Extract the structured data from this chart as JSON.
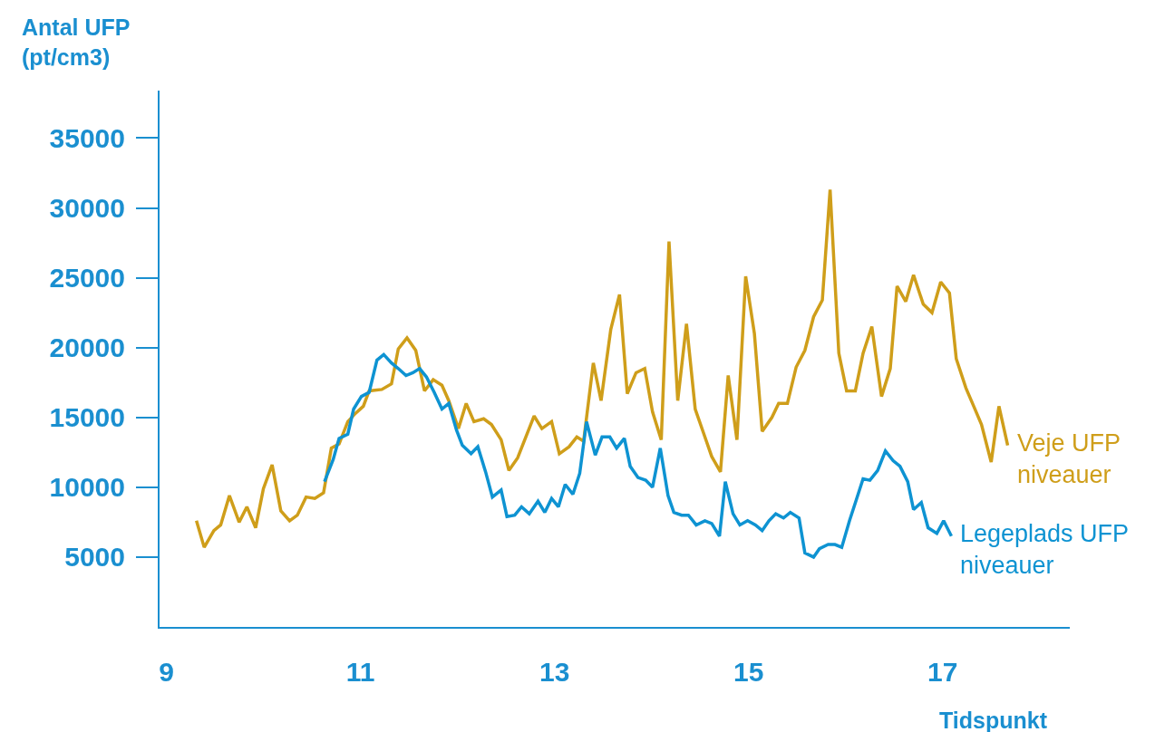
{
  "chart_data": {
    "type": "line",
    "xlabel": "Tidspunkt",
    "ylabel": "Antal UFP (pt/cm3)",
    "xlim": [
      8.93,
      18.31
    ],
    "ylim": [
      0,
      38400
    ],
    "xticks": [
      9,
      11,
      13,
      15,
      17
    ],
    "yticks": [
      5000,
      10000,
      15000,
      20000,
      25000,
      30000,
      35000
    ],
    "series": [
      {
        "name": "Veje UFP niveauer",
        "color": "#cf9e1a",
        "x": [
          9.31,
          9.39,
          9.49,
          9.56,
          9.65,
          9.75,
          9.83,
          9.92,
          10.0,
          10.09,
          10.18,
          10.27,
          10.35,
          10.44,
          10.53,
          10.62,
          10.7,
          10.78,
          10.87,
          10.95,
          11.03,
          11.09,
          11.22,
          11.32,
          11.39,
          11.48,
          11.57,
          11.66,
          11.75,
          11.84,
          11.91,
          12.01,
          12.09,
          12.17,
          12.27,
          12.35,
          12.45,
          12.53,
          12.62,
          12.71,
          12.79,
          12.87,
          12.97,
          13.05,
          13.15,
          13.23,
          13.3,
          13.4,
          13.48,
          13.58,
          13.67,
          13.75,
          13.84,
          13.93,
          14.01,
          14.1,
          14.18,
          14.27,
          14.36,
          14.45,
          14.54,
          14.62,
          14.71,
          14.79,
          14.88,
          14.97,
          15.06,
          15.14,
          15.24,
          15.31,
          15.4,
          15.49,
          15.58,
          15.67,
          15.76,
          15.84,
          15.93,
          16.01,
          16.1,
          16.18,
          16.27,
          16.37,
          16.46,
          16.53,
          16.62,
          16.7,
          16.8,
          16.89,
          16.98,
          17.07,
          17.14,
          17.24,
          17.32,
          17.4,
          17.5,
          17.58,
          17.67
        ],
        "values": [
          7600,
          5700,
          6900,
          7300,
          9400,
          7500,
          8600,
          7100,
          9900,
          11600,
          8300,
          7600,
          8000,
          9300,
          9200,
          9600,
          12800,
          13100,
          14700,
          15300,
          15800,
          16900,
          17000,
          17400,
          19900,
          20700,
          19800,
          16900,
          17700,
          17300,
          16200,
          14200,
          16000,
          14700,
          14900,
          14500,
          13400,
          11200,
          12100,
          13700,
          15100,
          14200,
          14700,
          12400,
          12900,
          13600,
          13300,
          18900,
          16200,
          21300,
          23800,
          16700,
          18200,
          18500,
          15400,
          13400,
          27600,
          16200,
          21700,
          15600,
          13800,
          12200,
          11100,
          18000,
          13400,
          25100,
          21000,
          14000,
          15000,
          16000,
          16000,
          18600,
          19800,
          22200,
          23400,
          31300,
          19600,
          16900,
          16900,
          19600,
          21500,
          16500,
          18500,
          24400,
          23300,
          25200,
          23100,
          22500,
          24700,
          23900,
          19200,
          17100,
          15800,
          14500,
          11800,
          15800,
          13000
        ]
      },
      {
        "name": "Legeplads UFP niveauer",
        "color": "#0e93d2",
        "x": [
          10.63,
          10.72,
          10.78,
          10.87,
          10.93,
          11.01,
          11.09,
          11.17,
          11.24,
          11.32,
          11.39,
          11.47,
          11.54,
          11.61,
          11.68,
          11.76,
          11.84,
          11.91,
          11.99,
          12.05,
          12.14,
          12.21,
          12.29,
          12.36,
          12.45,
          12.51,
          12.59,
          12.66,
          12.74,
          12.83,
          12.9,
          12.97,
          13.04,
          13.11,
          13.19,
          13.26,
          13.33,
          13.42,
          13.49,
          13.57,
          13.64,
          13.72,
          13.78,
          13.86,
          13.94,
          14.01,
          14.09,
          14.17,
          14.23,
          14.31,
          14.38,
          14.46,
          14.55,
          14.62,
          14.7,
          14.76,
          14.84,
          14.91,
          14.99,
          15.07,
          15.14,
          15.21,
          15.28,
          15.36,
          15.43,
          15.52,
          15.58,
          15.67,
          15.73,
          15.82,
          15.89,
          15.96,
          16.04,
          16.11,
          16.18,
          16.25,
          16.33,
          16.41,
          16.49,
          16.56,
          16.64,
          16.7,
          16.78,
          16.85,
          16.94,
          17.01,
          17.09
        ],
        "values": [
          10400,
          12000,
          13500,
          13800,
          15600,
          16500,
          16800,
          19100,
          19500,
          18900,
          18500,
          18000,
          18200,
          18500,
          17900,
          16800,
          15600,
          16000,
          14100,
          13000,
          12400,
          12900,
          11100,
          9300,
          9800,
          7900,
          8000,
          8600,
          8100,
          9000,
          8200,
          9200,
          8600,
          10200,
          9500,
          11000,
          14700,
          12300,
          13600,
          13600,
          12800,
          13500,
          11500,
          10700,
          10500,
          10000,
          12800,
          9400,
          8200,
          8000,
          8000,
          7300,
          7600,
          7400,
          6500,
          10400,
          8100,
          7300,
          7600,
          7300,
          6900,
          7600,
          8100,
          7800,
          8200,
          7800,
          5300,
          5000,
          5600,
          5900,
          5900,
          5700,
          7600,
          9100,
          10600,
          10500,
          11200,
          12600,
          11900,
          11500,
          10400,
          8400,
          8900,
          7100,
          6700,
          7600,
          6500
        ]
      }
    ]
  }
}
